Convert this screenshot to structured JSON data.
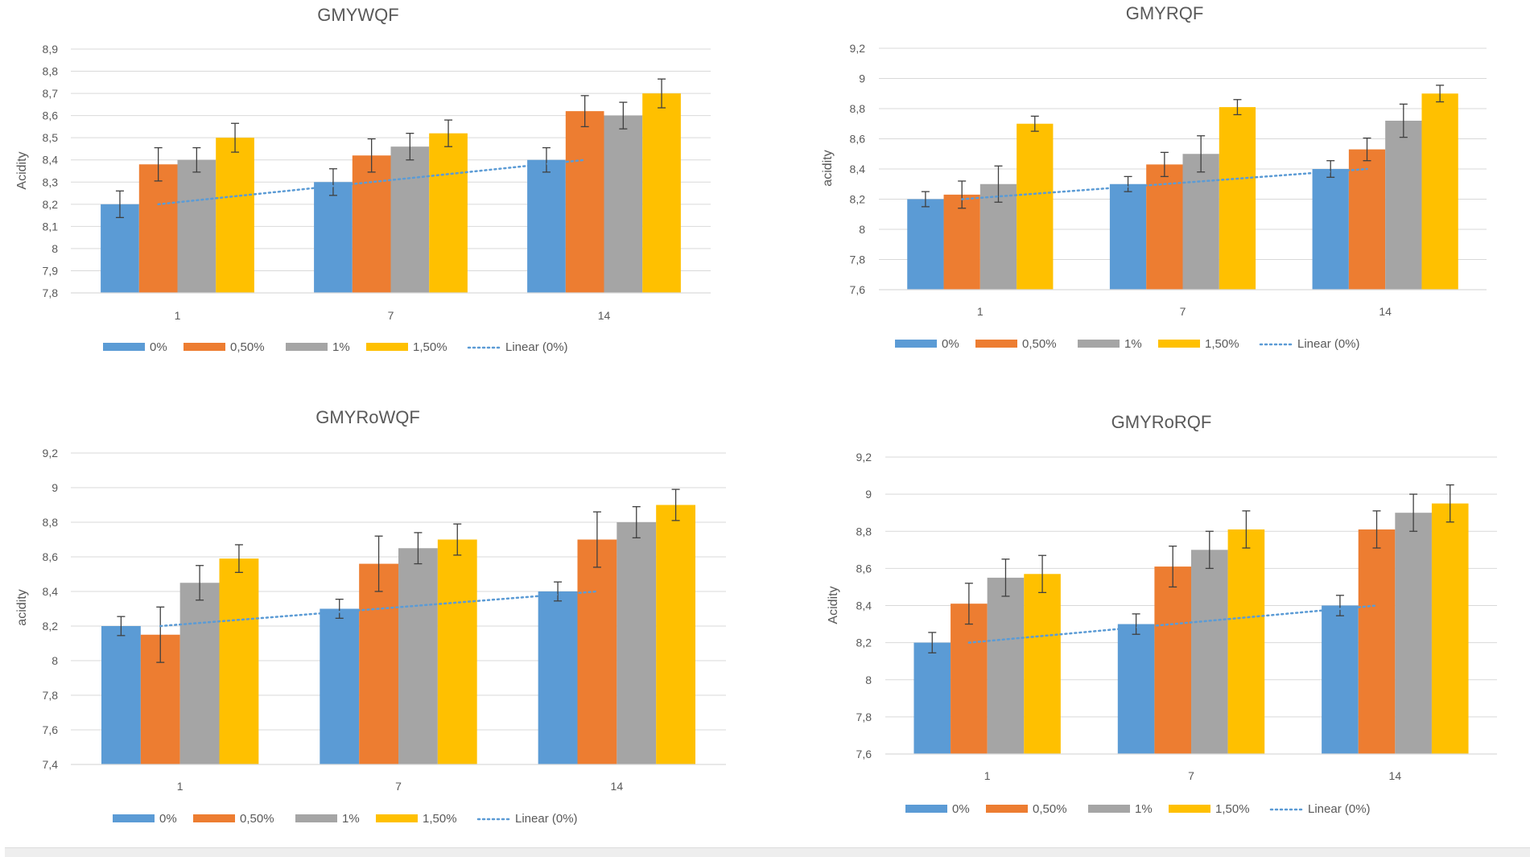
{
  "colors": {
    "series": [
      "#5b9bd5",
      "#ed7d31",
      "#a5a5a5",
      "#ffc000"
    ],
    "trend": "#5b9bd5",
    "grid": "#d9d9d9",
    "axis_text": "#595959",
    "title_text": "#595959",
    "error_bar": "#404040"
  },
  "charts": [
    {
      "name": "chart-gmywqf",
      "type": "bar",
      "title": "GMYWQF",
      "ylabel": "Acidity",
      "categories": [
        "1",
        "7",
        "14"
      ],
      "series": [
        {
          "name": "0%",
          "values": [
            8.2,
            8.3,
            8.4
          ],
          "errors": [
            0.06,
            0.06,
            0.055
          ]
        },
        {
          "name": "0,50%",
          "values": [
            8.38,
            8.42,
            8.62
          ],
          "errors": [
            0.075,
            0.075,
            0.07
          ]
        },
        {
          "name": "1%",
          "values": [
            8.4,
            8.46,
            8.6
          ],
          "errors": [
            0.055,
            0.06,
            0.06
          ]
        },
        {
          "name": "1,50%",
          "values": [
            8.5,
            8.52,
            8.7
          ],
          "errors": [
            0.065,
            0.06,
            0.065
          ]
        }
      ],
      "trendline": {
        "label": "Linear (0%)",
        "from": 8.2,
        "to": 8.4
      },
      "ylim": [
        7.8,
        8.9
      ],
      "yticks": [
        "7,8",
        "7,9",
        "8",
        "8,1",
        "8,2",
        "8,3",
        "8,4",
        "8,5",
        "8,6",
        "8,7",
        "8,8",
        "8,9"
      ]
    },
    {
      "name": "chart-gmyrqf",
      "type": "bar",
      "title": "GMYRQF",
      "ylabel": "acidity",
      "categories": [
        "1",
        "7",
        "14"
      ],
      "series": [
        {
          "name": "0%",
          "values": [
            8.2,
            8.3,
            8.4
          ],
          "errors": [
            0.05,
            0.05,
            0.055
          ]
        },
        {
          "name": "0,50%",
          "values": [
            8.23,
            8.43,
            8.53
          ],
          "errors": [
            0.09,
            0.08,
            0.075
          ]
        },
        {
          "name": "1%",
          "values": [
            8.3,
            8.5,
            8.72
          ],
          "errors": [
            0.12,
            0.12,
            0.11
          ]
        },
        {
          "name": "1,50%",
          "values": [
            8.7,
            8.81,
            8.9
          ],
          "errors": [
            0.05,
            0.05,
            0.055
          ]
        }
      ],
      "trendline": {
        "label": "Linear (0%)",
        "from": 8.2,
        "to": 8.4
      },
      "ylim": [
        7.6,
        9.2
      ],
      "yticks": [
        "7,6",
        "7,8",
        "8",
        "8,2",
        "8,4",
        "8,6",
        "8,8",
        "9",
        "9,2"
      ]
    },
    {
      "name": "chart-gmyrowqf",
      "type": "bar",
      "title": "GMYRoWQF",
      "ylabel": "acidity",
      "categories": [
        "1",
        "7",
        "14"
      ],
      "series": [
        {
          "name": "0%",
          "values": [
            8.2,
            8.3,
            8.4
          ],
          "errors": [
            0.055,
            0.055,
            0.055
          ]
        },
        {
          "name": "0,50%",
          "values": [
            8.15,
            8.56,
            8.7
          ],
          "errors": [
            0.16,
            0.16,
            0.16
          ]
        },
        {
          "name": "1%",
          "values": [
            8.45,
            8.65,
            8.8
          ],
          "errors": [
            0.1,
            0.09,
            0.09
          ]
        },
        {
          "name": "1,50%",
          "values": [
            8.59,
            8.7,
            8.9
          ],
          "errors": [
            0.08,
            0.09,
            0.09
          ]
        }
      ],
      "trendline": {
        "label": "Linear (0%)",
        "from": 8.2,
        "to": 8.4
      },
      "ylim": [
        7.4,
        9.2
      ],
      "yticks": [
        "7,4",
        "7,6",
        "7,8",
        "8",
        "8,2",
        "8,4",
        "8,6",
        "8,8",
        "9",
        "9,2"
      ]
    },
    {
      "name": "chart-gmyrorqf",
      "type": "bar",
      "title": "GMYRoRQF",
      "ylabel": "Acidity",
      "categories": [
        "1",
        "7",
        "14"
      ],
      "series": [
        {
          "name": "0%",
          "values": [
            8.2,
            8.3,
            8.4
          ],
          "errors": [
            0.055,
            0.055,
            0.055
          ]
        },
        {
          "name": "0,50%",
          "values": [
            8.41,
            8.61,
            8.81
          ],
          "errors": [
            0.11,
            0.11,
            0.1
          ]
        },
        {
          "name": "1%",
          "values": [
            8.55,
            8.7,
            8.9
          ],
          "errors": [
            0.1,
            0.1,
            0.1
          ]
        },
        {
          "name": "1,50%",
          "values": [
            8.57,
            8.81,
            8.95
          ],
          "errors": [
            0.1,
            0.1,
            0.1
          ]
        }
      ],
      "trendline": {
        "label": "Linear (0%)",
        "from": 8.2,
        "to": 8.4
      },
      "ylim": [
        7.6,
        9.2
      ],
      "yticks": [
        "7,6",
        "7,8",
        "8",
        "8,2",
        "8,4",
        "8,6",
        "8,8",
        "9",
        "9,2"
      ]
    }
  ]
}
